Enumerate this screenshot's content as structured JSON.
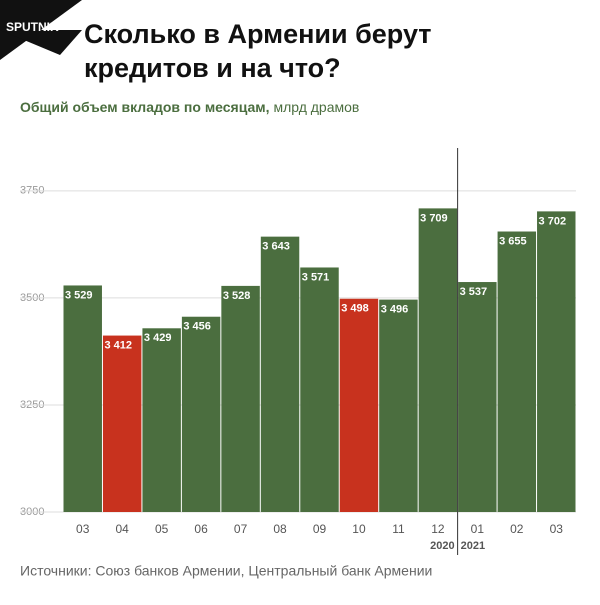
{
  "logo": "SPUTNIK",
  "chart_data": {
    "type": "bar",
    "title_lines": [
      "Сколько в Армении берут",
      "кредитов и на что?"
    ],
    "subtitle": "Общий объем вкладов по месяцам,",
    "subtitle_unit": "млрд драмов",
    "categories": [
      "03",
      "04",
      "05",
      "06",
      "07",
      "08",
      "09",
      "10",
      "11",
      "12",
      "01",
      "02",
      "03"
    ],
    "values": [
      3529,
      3412,
      3429,
      3456,
      3528,
      3643,
      3571,
      3498,
      3496,
      3709,
      3537,
      3655,
      3702
    ],
    "value_labels": [
      "3 529",
      "3 412",
      "3 429",
      "3 456",
      "3 528",
      "3 643",
      "3 571",
      "3 498",
      "3 496",
      "3 709",
      "3 537",
      "3 655",
      "3 702"
    ],
    "colors": [
      "#4b6e3f",
      "#c8321e",
      "#4b6e3f",
      "#4b6e3f",
      "#4b6e3f",
      "#4b6e3f",
      "#4b6e3f",
      "#c8321e",
      "#4b6e3f",
      "#4b6e3f",
      "#4b6e3f",
      "#4b6e3f",
      "#4b6e3f"
    ],
    "year_labels": [
      "2020",
      "2021"
    ],
    "ylim": [
      3000,
      3850
    ],
    "yticks": [
      3000,
      3250,
      3500,
      3750
    ],
    "grid": true,
    "source": "Источники: Союз банков Армении, Центральный банк Армении"
  }
}
